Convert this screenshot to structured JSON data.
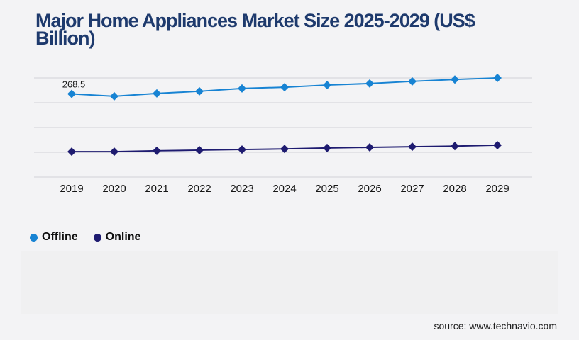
{
  "title": {
    "full": "Major Home Appliances Market Size 2025-2029 (US$ Billion)",
    "line1": "Major Home Appliances Market Size 2025-2029 (US$",
    "line2": "Billion)"
  },
  "page": {
    "source": "source: www.technavio.com"
  },
  "colors": {
    "background": "#f3f3f5",
    "title": "#1e3a6d",
    "gridline": "#d2d2d6",
    "offline": "#1783d3",
    "online": "#1e1b70"
  },
  "legend": [
    {
      "label": "Offline",
      "color": "#1783d3"
    },
    {
      "label": "Online",
      "color": "#1e1b70"
    }
  ],
  "chart_data": {
    "type": "line",
    "title": "Major Home Appliances Market Size 2025-2029 (US$ Billion)",
    "x": [
      "2019",
      "2020",
      "2021",
      "2022",
      "2023",
      "2024",
      "2025",
      "2026",
      "2027",
      "2028",
      "2029"
    ],
    "series": [
      {
        "name": "Offline",
        "color": "#1783d3",
        "marker": "diamond",
        "values": [
          268.5,
          261,
          270,
          277,
          286,
          290,
          297,
          302,
          309,
          315,
          320
        ]
      },
      {
        "name": "Online",
        "color": "#1e1b70",
        "marker": "diamond",
        "values": [
          82,
          82,
          85,
          87,
          89,
          91,
          94,
          96,
          98,
          100,
          103
        ]
      }
    ],
    "annotations": [
      {
        "series": "Offline",
        "x": "2019",
        "text": "268.5"
      }
    ],
    "xlabel": "",
    "ylabel": "",
    "ylim": [
      0,
      320
    ],
    "gridline_values": [
      0,
      80,
      160,
      240,
      320
    ],
    "grid": true,
    "y_axis_labels_visible": false,
    "legend_position": "bottom-left"
  }
}
